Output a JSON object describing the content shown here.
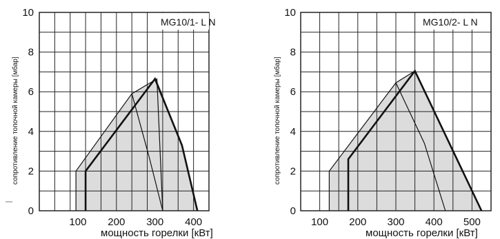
{
  "colors": {
    "fill": "#dcdcdc",
    "grid": "#222222",
    "line": "#111111"
  },
  "chart_data": [
    {
      "type": "area",
      "title": "MG10/1-LN",
      "title_display": "MG10/1- L N",
      "xlabel": "мощность горелки [кВт]",
      "ylabel": "сопротивление топочной камеры [мбар]",
      "xlim": [
        0,
        440
      ],
      "ylim": [
        0,
        10
      ],
      "x_ticks": [
        100,
        200,
        300,
        400
      ],
      "x_tick_labels": [
        "100",
        "200",
        "300",
        "400"
      ],
      "y_ticks": [
        0,
        2,
        4,
        6,
        8,
        10
      ],
      "y_tick_labels": [
        "0",
        "2",
        "4",
        "6",
        "8",
        "10"
      ],
      "grid": true,
      "series": [
        {
          "style": "thin",
          "points": [
            [
              95,
              0
            ],
            [
              95,
              2
            ],
            [
              240,
              5.9
            ],
            [
              305,
              6.65
            ],
            [
              320,
              0
            ]
          ]
        },
        {
          "style": "thick",
          "points": [
            [
              120,
              0
            ],
            [
              120,
              2
            ],
            [
              300,
              6.65
            ],
            [
              370,
              3.3
            ],
            [
              410,
              0
            ]
          ]
        },
        {
          "style": "thin-inner",
          "points": [
            [
              240,
              5.9
            ],
            [
              285,
              2.7
            ],
            [
              320,
              0
            ]
          ]
        }
      ]
    },
    {
      "type": "area",
      "title": "MG10/2-LN",
      "title_display": "MG10/2- L N",
      "xlabel": "мощность горелки [кВт]",
      "ylabel": "сопротивление топочной камеры [мбар]",
      "xlim": [
        50,
        550
      ],
      "ylim": [
        0,
        10
      ],
      "x_ticks": [
        100,
        200,
        300,
        400,
        500
      ],
      "x_tick_labels": [
        "100",
        "200",
        "300",
        "400",
        "500"
      ],
      "y_ticks": [
        0,
        2,
        4,
        6,
        8,
        10
      ],
      "y_tick_labels": [
        "0",
        "2",
        "4",
        "6",
        "8",
        "10"
      ],
      "grid": true,
      "series": [
        {
          "style": "thin",
          "points": [
            [
              125,
              0
            ],
            [
              125,
              2
            ],
            [
              300,
              6.45
            ],
            [
              350,
              7.05
            ],
            [
              525,
              0
            ]
          ]
        },
        {
          "style": "thick",
          "points": [
            [
              175,
              0
            ],
            [
              175,
              2.6
            ],
            [
              350,
              7.05
            ],
            [
              525,
              0
            ]
          ]
        },
        {
          "style": "thin-inner",
          "points": [
            [
              300,
              6.45
            ],
            [
              375,
              3.4
            ],
            [
              430,
              0
            ]
          ]
        }
      ]
    }
  ]
}
